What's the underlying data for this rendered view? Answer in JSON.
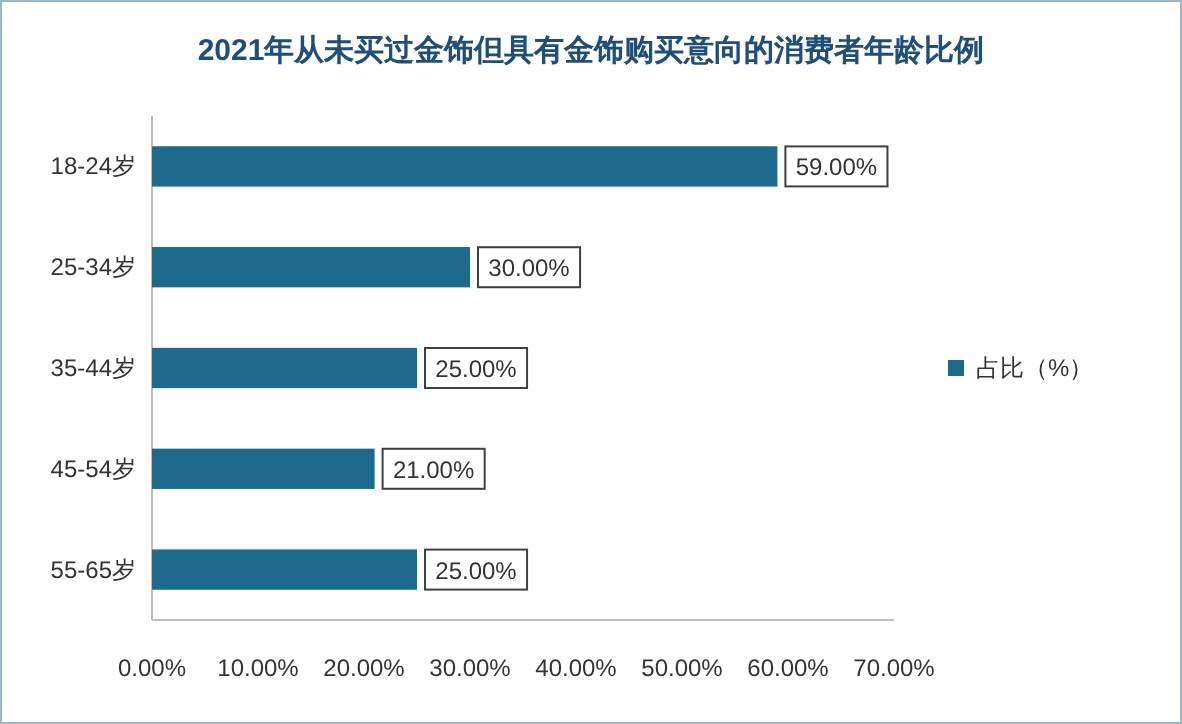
{
  "chart_data": {
    "type": "bar",
    "orientation": "horizontal",
    "title": "2021年从未买过金饰但具有金饰购买意向的消费者年龄比例",
    "categories": [
      "18-24岁",
      "25-34岁",
      "35-44岁",
      "45-54岁",
      "55-65岁"
    ],
    "series": [
      {
        "name": "占比（%）",
        "color": "#1d6a8c",
        "values": [
          59,
          30,
          25,
          21,
          25
        ]
      }
    ],
    "value_labels": [
      "59.00%",
      "30.00%",
      "25.00%",
      "21.00%",
      "25.00%"
    ],
    "xlim": [
      0,
      70
    ],
    "xticks": [
      {
        "value": 0,
        "label": "0.00%"
      },
      {
        "value": 10,
        "label": "10.00%"
      },
      {
        "value": 20,
        "label": "20.00%"
      },
      {
        "value": 30,
        "label": "30.00%"
      },
      {
        "value": 40,
        "label": "40.00%"
      },
      {
        "value": 50,
        "label": "50.00%"
      },
      {
        "value": 60,
        "label": "60.00%"
      },
      {
        "value": 70,
        "label": "70.00%"
      }
    ],
    "grid": false,
    "legend": "right"
  }
}
